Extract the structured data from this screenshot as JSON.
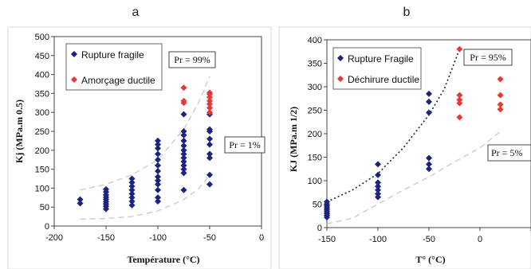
{
  "chart_data": [
    {
      "type": "scatter",
      "panel_label": "a",
      "xlabel": "Température (°C)",
      "ylabel": "Kj (MPa.m 0.5)",
      "xlim": [
        -200,
        0
      ],
      "ylim": [
        0,
        500
      ],
      "xticks": [
        "-200",
        "-150",
        "-100",
        "-50",
        "0"
      ],
      "yticks": [
        "0",
        "50",
        "100",
        "150",
        "200",
        "250",
        "300",
        "350",
        "400",
        "450",
        "500"
      ],
      "grid": false,
      "legend_position": "top-left",
      "series": [
        {
          "name": "Rupture fragile",
          "color": "#1a237e",
          "marker": "diamond",
          "points": [
            [
              -175,
              60
            ],
            [
              -175,
              70
            ],
            [
              -150,
              45
            ],
            [
              -150,
              52
            ],
            [
              -150,
              58
            ],
            [
              -150,
              64
            ],
            [
              -150,
              70
            ],
            [
              -150,
              76
            ],
            [
              -150,
              82
            ],
            [
              -150,
              90
            ],
            [
              -150,
              97
            ],
            [
              -125,
              55
            ],
            [
              -125,
              65
            ],
            [
              -125,
              75
            ],
            [
              -125,
              85
            ],
            [
              -125,
              95
            ],
            [
              -125,
              105
            ],
            [
              -125,
              115
            ],
            [
              -125,
              125
            ],
            [
              -100,
              65
            ],
            [
              -100,
              75
            ],
            [
              -100,
              95
            ],
            [
              -100,
              110
            ],
            [
              -100,
              120
            ],
            [
              -100,
              130
            ],
            [
              -100,
              145
            ],
            [
              -100,
              160
            ],
            [
              -100,
              175
            ],
            [
              -100,
              190
            ],
            [
              -100,
              205
            ],
            [
              -100,
              215
            ],
            [
              -100,
              225
            ],
            [
              -75,
              95
            ],
            [
              -75,
              140
            ],
            [
              -75,
              150
            ],
            [
              -75,
              160
            ],
            [
              -75,
              170
            ],
            [
              -75,
              180
            ],
            [
              -75,
              190
            ],
            [
              -75,
              200
            ],
            [
              -75,
              212
            ],
            [
              -75,
              225
            ],
            [
              -75,
              240
            ],
            [
              -75,
              250
            ],
            [
              -75,
              295
            ],
            [
              -50,
              110
            ],
            [
              -50,
              135
            ],
            [
              -50,
              180
            ],
            [
              -50,
              190
            ],
            [
              -50,
              215
            ],
            [
              -50,
              230
            ],
            [
              -50,
              250
            ],
            [
              -50,
              255
            ],
            [
              -50,
              295
            ]
          ]
        },
        {
          "name": "Amorçage ductile",
          "color": "#e53935",
          "marker": "diamond",
          "points": [
            [
              -75,
              325
            ],
            [
              -75,
              330
            ],
            [
              -75,
              365
            ],
            [
              -50,
              300
            ],
            [
              -50,
              312
            ],
            [
              -50,
              322
            ],
            [
              -50,
              330
            ],
            [
              -50,
              340
            ],
            [
              -50,
              348
            ],
            [
              -50,
              352
            ]
          ]
        }
      ],
      "curves": [
        {
          "label": "Pr = 99%",
          "style": "dashed",
          "color": "#c8c8c8",
          "points": [
            [
              -175,
              95
            ],
            [
              -150,
              110
            ],
            [
              -125,
              135
            ],
            [
              -100,
              175
            ],
            [
              -75,
              255
            ],
            [
              -60,
              330
            ],
            [
              -50,
              395
            ]
          ]
        },
        {
          "label": "Pr = 1%",
          "style": "dashed",
          "color": "#c8c8c8",
          "points": [
            [
              -175,
              18
            ],
            [
              -150,
              20
            ],
            [
              -125,
              25
            ],
            [
              -100,
              40
            ],
            [
              -75,
              70
            ],
            [
              -60,
              100
            ],
            [
              -50,
              135
            ]
          ]
        }
      ],
      "annotations": [
        "Pr = 99%",
        "Pr = 1%"
      ]
    },
    {
      "type": "scatter",
      "panel_label": "b",
      "xlabel": "T° (°C)",
      "ylabel": "KJ (MPa.m 1/2)",
      "xlim": [
        -150,
        50
      ],
      "ylim": [
        0,
        400
      ],
      "xticks": [
        "-150",
        "-100",
        "-50",
        "0",
        "50"
      ],
      "yticks": [
        "0",
        "50",
        "100",
        "150",
        "200",
        "250",
        "300",
        "350",
        "400"
      ],
      "grid": false,
      "legend_position": "top-left",
      "series": [
        {
          "name": "Rupture Fragile",
          "color": "#1a237e",
          "marker": "diamond",
          "points": [
            [
              -150,
              22
            ],
            [
              -150,
              26
            ],
            [
              -150,
              30
            ],
            [
              -150,
              34
            ],
            [
              -150,
              38
            ],
            [
              -150,
              42
            ],
            [
              -150,
              46
            ],
            [
              -150,
              50
            ],
            [
              -150,
              55
            ],
            [
              -100,
              65
            ],
            [
              -100,
              72
            ],
            [
              -100,
              80
            ],
            [
              -100,
              88
            ],
            [
              -100,
              96
            ],
            [
              -100,
              112
            ],
            [
              -100,
              135
            ],
            [
              -50,
              125
            ],
            [
              -50,
              135
            ],
            [
              -50,
              148
            ],
            [
              -50,
              245
            ],
            [
              -50,
              268
            ],
            [
              -50,
              285
            ]
          ]
        },
        {
          "name": "Déchirure ductile",
          "color": "#e53935",
          "marker": "diamond",
          "points": [
            [
              -20,
              235
            ],
            [
              -20,
              265
            ],
            [
              -20,
              272
            ],
            [
              -20,
              282
            ],
            [
              -20,
              380
            ],
            [
              20,
              252
            ],
            [
              20,
              262
            ],
            [
              20,
              282
            ],
            [
              20,
              316
            ]
          ]
        }
      ],
      "curves": [
        {
          "label": "Pr = 95%",
          "style": "dotted",
          "color": "#222222",
          "points": [
            [
              -150,
              55
            ],
            [
              -125,
              80
            ],
            [
              -100,
              115
            ],
            [
              -75,
              170
            ],
            [
              -50,
              240
            ],
            [
              -35,
              295
            ],
            [
              -20,
              380
            ]
          ]
        },
        {
          "label": "Pr = 5%",
          "style": "dashed",
          "color": "#c8c8c8",
          "points": [
            [
              -150,
              8
            ],
            [
              -125,
              20
            ],
            [
              -100,
              50
            ],
            [
              -75,
              80
            ],
            [
              -50,
              108
            ],
            [
              -25,
              140
            ],
            [
              0,
              170
            ],
            [
              20,
              205
            ]
          ]
        }
      ],
      "annotations": [
        "Pr = 95%",
        "Pr = 5%"
      ]
    }
  ]
}
